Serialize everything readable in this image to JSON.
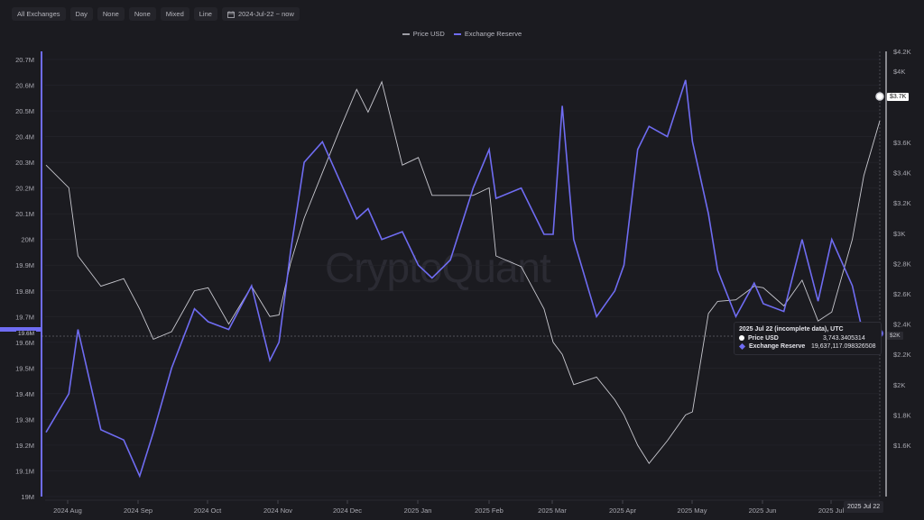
{
  "toolbar": {
    "buttons": [
      {
        "label": "All Exchanges"
      },
      {
        "label": "Day"
      },
      {
        "label": "None"
      },
      {
        "label": "None"
      },
      {
        "label": "Mixed"
      },
      {
        "label": "Line"
      },
      {
        "label": "2024-Jul-22 ~ now",
        "icon": "calendar-icon"
      }
    ]
  },
  "legend": [
    {
      "label": "Price USD",
      "color": "#9e9ea6"
    },
    {
      "label": "Exchange Reserve",
      "color": "#6f6cf2"
    }
  ],
  "watermark": "CryptoQuant",
  "tooltip": {
    "title": "2025 Jul 22 (incomplete data), UTC",
    "rows": [
      {
        "label": "Price USD",
        "value": "3,743.3405314",
        "marker": "circle",
        "color": "#ffffff"
      },
      {
        "label": "Exchange Reserve",
        "value": "19,637,117.098326508",
        "marker": "diamond",
        "color": "#6f6cf2"
      }
    ]
  },
  "flags": {
    "price": "$3.7K",
    "reserve_right": "$2K",
    "reserve_left": "19.6M",
    "date": "2025 Jul 22"
  },
  "colors": {
    "background": "#1b1b20",
    "price_line": "#c8c8cf",
    "reserve_line": "#6f6cf2",
    "grid": "#25252b"
  },
  "chart_data": {
    "type": "line",
    "title": "",
    "xlabel": "",
    "ylabel_left": "Exchange Reserve",
    "ylabel_right": "Price USD",
    "x_ticks": [
      "2024 Aug",
      "2024 Sep",
      "2024 Oct",
      "2024 Nov",
      "2024 Dec",
      "2025 Jan",
      "2025 Feb",
      "2025 Mar",
      "2025 Apr",
      "2025 May",
      "2025 Jun",
      "2025 Jul"
    ],
    "y_left_ticks": [
      "19M",
      "19.1M",
      "19.2M",
      "19.3M",
      "19.4M",
      "19.5M",
      "19.6M",
      "19.7M",
      "19.8M",
      "19.9M",
      "20M",
      "20.1M",
      "20.2M",
      "20.3M",
      "20.4M",
      "20.5M",
      "20.6M",
      "20.7M"
    ],
    "y_right_ticks": [
      "$1.6K",
      "$1.8K",
      "$2K",
      "$2.2K",
      "$2.4K",
      "$2.6K",
      "$2.8K",
      "$3K",
      "$3.2K",
      "$3.4K",
      "$3.6K",
      "$4K",
      "$4.2K"
    ],
    "ylim_left": [
      19000000,
      20700000
    ],
    "ylim_right": [
      1500000,
      4200
    ],
    "grid": true,
    "legend_position": "top-center",
    "x": [
      "2024-07-22",
      "2024-08-01",
      "2024-08-05",
      "2024-08-15",
      "2024-08-25",
      "2024-09-01",
      "2024-09-07",
      "2024-09-15",
      "2024-09-25",
      "2024-10-01",
      "2024-10-10",
      "2024-10-20",
      "2024-10-28",
      "2024-11-01",
      "2024-11-06",
      "2024-11-12",
      "2024-11-20",
      "2024-11-28",
      "2024-12-05",
      "2024-12-10",
      "2024-12-16",
      "2024-12-25",
      "2025-01-01",
      "2025-01-07",
      "2025-01-15",
      "2025-01-25",
      "2025-02-01",
      "2025-02-04",
      "2025-02-15",
      "2025-02-25",
      "2025-03-01",
      "2025-03-05",
      "2025-03-10",
      "2025-03-20",
      "2025-03-28",
      "2025-04-01",
      "2025-04-07",
      "2025-04-12",
      "2025-04-20",
      "2025-04-28",
      "2025-05-01",
      "2025-05-08",
      "2025-05-12",
      "2025-05-20",
      "2025-05-28",
      "2025-06-01",
      "2025-06-10",
      "2025-06-18",
      "2025-06-25",
      "2025-07-01",
      "2025-07-10",
      "2025-07-15",
      "2025-07-22"
    ],
    "series": [
      {
        "name": "Price USD",
        "axis": "right",
        "values": [
          3450,
          3300,
          2850,
          2650,
          2700,
          2500,
          2300,
          2350,
          2620,
          2640,
          2400,
          2650,
          2450,
          2460,
          2800,
          3100,
          3400,
          3700,
          3950,
          3800,
          4000,
          3450,
          3500,
          3250,
          3250,
          3250,
          3300,
          2850,
          2780,
          2500,
          2280,
          2200,
          2000,
          2050,
          1900,
          1800,
          1600,
          1480,
          1630,
          1800,
          1820,
          2470,
          2550,
          2560,
          2650,
          2640,
          2520,
          2690,
          2420,
          2480,
          2960,
          3380,
          3743
        ]
      },
      {
        "name": "Exchange Reserve",
        "axis": "left",
        "values": [
          19250000,
          19400000,
          19650000,
          19260000,
          19220000,
          19080000,
          19250000,
          19500000,
          19730000,
          19680000,
          19650000,
          19820000,
          19530000,
          19600000,
          19950000,
          20300000,
          20380000,
          20220000,
          20080000,
          20120000,
          20000000,
          20030000,
          19900000,
          19850000,
          19920000,
          20200000,
          20350000,
          20160000,
          20200000,
          20020000,
          20020000,
          20520000,
          20000000,
          19700000,
          19800000,
          19900000,
          20350000,
          20440000,
          20400000,
          20620000,
          20380000,
          20100000,
          19880000,
          19700000,
          19830000,
          19750000,
          19720000,
          20000000,
          19760000,
          20000000,
          19820000,
          19620000,
          19637117
        ]
      }
    ]
  }
}
